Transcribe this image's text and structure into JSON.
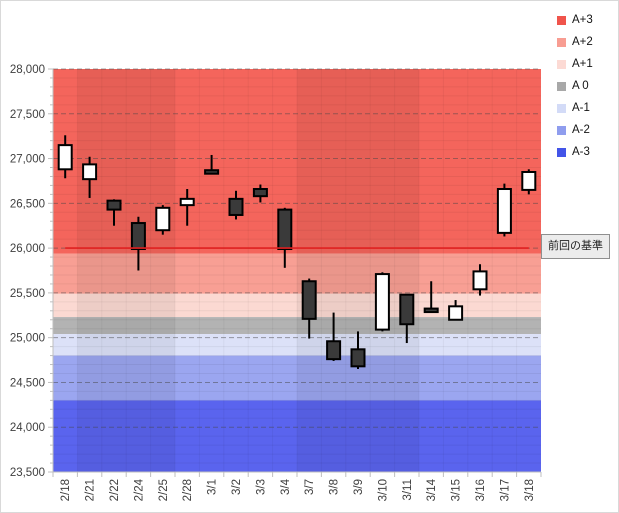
{
  "chart_data": {
    "type": "candlestick",
    "title": "",
    "x_labels": [
      "2/18",
      "2/21",
      "2/22",
      "2/24",
      "2/25",
      "2/28",
      "3/1",
      "3/2",
      "3/3",
      "3/4",
      "3/7",
      "3/8",
      "3/9",
      "3/10",
      "3/11",
      "3/14",
      "3/15",
      "3/16",
      "3/17",
      "3/18"
    ],
    "y_axis": {
      "min": 23500,
      "max": 28000,
      "tick_interval": 500,
      "minor_tick_interval": 100,
      "tick_labels": [
        "28,000",
        "27,500",
        "27,000",
        "26,500",
        "26,000",
        "25,500",
        "25,000",
        "24,500",
        "24,000",
        "23,500"
      ]
    },
    "candles": [
      {
        "date": "2/18",
        "open": 26880,
        "high": 27260,
        "low": 26780,
        "close": 27150
      },
      {
        "date": "2/21",
        "open": 26770,
        "high": 27020,
        "low": 26560,
        "close": 26935
      },
      {
        "date": "2/22",
        "open": 26530,
        "high": 26545,
        "low": 26250,
        "close": 26430
      },
      {
        "date": "2/24",
        "open": 26280,
        "high": 26350,
        "low": 25750,
        "close": 25990
      },
      {
        "date": "2/25",
        "open": 26200,
        "high": 26480,
        "low": 26150,
        "close": 26450
      },
      {
        "date": "2/28",
        "open": 26480,
        "high": 26660,
        "low": 26250,
        "close": 26550
      },
      {
        "date": "3/1",
        "open": 26870,
        "high": 27040,
        "low": 26855,
        "close": 26855
      },
      {
        "date": "3/2",
        "open": 26550,
        "high": 26640,
        "low": 26320,
        "close": 26370
      },
      {
        "date": "3/3",
        "open": 26660,
        "high": 26710,
        "low": 26510,
        "close": 26580
      },
      {
        "date": "3/4",
        "open": 26430,
        "high": 26450,
        "low": 25780,
        "close": 25990
      },
      {
        "date": "3/7",
        "open": 25630,
        "high": 25660,
        "low": 24990,
        "close": 25210
      },
      {
        "date": "3/8",
        "open": 24960,
        "high": 25280,
        "low": 24740,
        "close": 24760
      },
      {
        "date": "3/9",
        "open": 24870,
        "high": 25070,
        "low": 24650,
        "close": 24680
      },
      {
        "date": "3/10",
        "open": 25090,
        "high": 25730,
        "low": 25070,
        "close": 25710
      },
      {
        "date": "3/11",
        "open": 25480,
        "high": 25480,
        "low": 24940,
        "close": 25150
      },
      {
        "date": "3/14",
        "open": 25325,
        "high": 25630,
        "low": 25315,
        "close": 25315
      },
      {
        "date": "3/15",
        "open": 25200,
        "high": 25420,
        "low": 25195,
        "close": 25350
      },
      {
        "date": "3/16",
        "open": 25540,
        "high": 25820,
        "low": 25470,
        "close": 25740
      },
      {
        "date": "3/17",
        "open": 26170,
        "high": 26720,
        "low": 26130,
        "close": 26660
      },
      {
        "date": "3/18",
        "open": 26650,
        "high": 26880,
        "low": 26600,
        "close": 26850
      }
    ],
    "bands": [
      {
        "label": "A+3",
        "from": 25940,
        "to": 28000,
        "color": "#f4655c"
      },
      {
        "label": "A+2",
        "from": 25490,
        "to": 25940,
        "color": "#f89f94"
      },
      {
        "label": "A+1",
        "from": 25230,
        "to": 25490,
        "color": "#fbd9d2"
      },
      {
        "label": "A 0",
        "from": 25040,
        "to": 25230,
        "color": "#b3b3b3"
      },
      {
        "label": "A-1",
        "from": 24800,
        "to": 25040,
        "color": "#dce1f8"
      },
      {
        "label": "A-2",
        "from": 24300,
        "to": 24800,
        "color": "#9ba6f0"
      },
      {
        "label": "A-3",
        "from": 23500,
        "to": 24300,
        "color": "#5a64ee"
      }
    ],
    "legend": [
      {
        "label": "A+3",
        "color": "#f0544b"
      },
      {
        "label": "A+2",
        "color": "#f89d92"
      },
      {
        "label": "A+1",
        "color": "#fcdad4"
      },
      {
        "label": "A 0",
        "color": "#a8a8a8"
      },
      {
        "label": "A-1",
        "color": "#d3dbf7"
      },
      {
        "label": "A-2",
        "color": "#8f9dee"
      },
      {
        "label": "A-3",
        "color": "#4354e8"
      }
    ],
    "reference_line": {
      "value": 26000,
      "color": "#e02020",
      "label": "前回の基準"
    },
    "week_shading": {
      "dark_columns": [
        [
          1,
          5
        ],
        [
          10,
          15
        ]
      ],
      "overlay": "rgba(0,0,0,0.055)"
    },
    "candle_up_color": "#ffffff",
    "candle_down_color": "#3a3a3a",
    "candle_border_color": "#000000",
    "legend_position": "top-right",
    "grid": "major dashed 500, minor 100"
  }
}
